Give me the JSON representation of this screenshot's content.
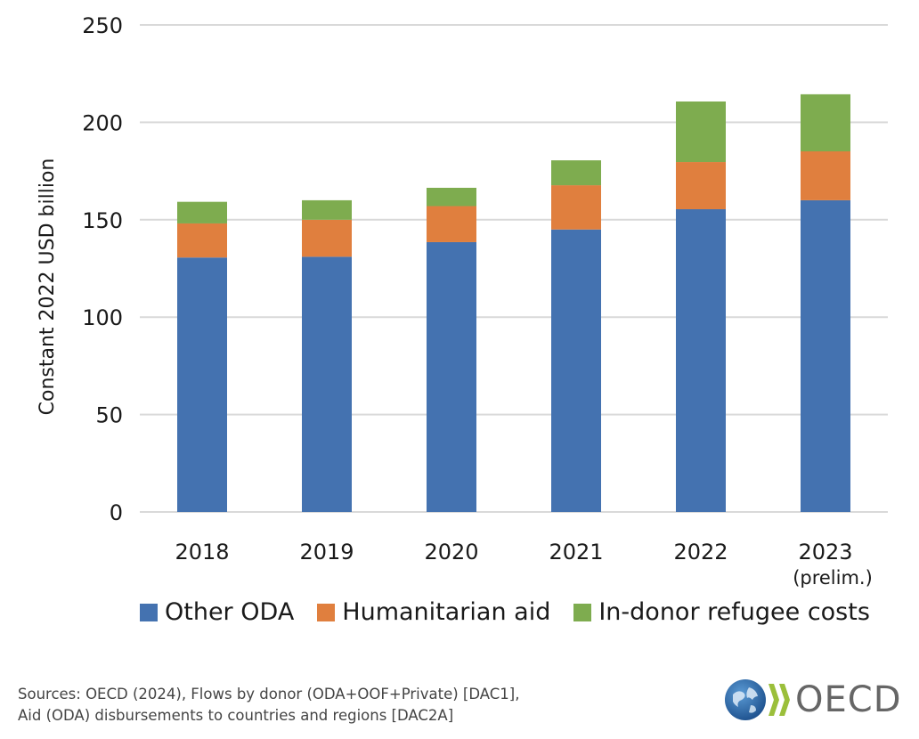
{
  "chart_data": {
    "type": "bar",
    "stacked": true,
    "title": "",
    "xlabel": "",
    "ylabel": "Constant 2022 USD billion",
    "ylim": [
      0,
      250
    ],
    "yticks": [
      0,
      50,
      100,
      150,
      200,
      250
    ],
    "grid": true,
    "legend_position": "bottom",
    "categories": [
      "2018",
      "2019",
      "2020",
      "2021",
      "2022",
      "2023"
    ],
    "category_sublabels": [
      "",
      "",
      "",
      "",
      "",
      "(prelim.)"
    ],
    "series": [
      {
        "name": "Other ODA",
        "color": "#4472b0",
        "values": [
          130.6,
          131.0,
          138.5,
          145.0,
          155.4,
          160.0
        ]
      },
      {
        "name": "Humanitarian aid",
        "color": "#e07f3e",
        "values": [
          17.5,
          19.0,
          18.5,
          22.7,
          24.2,
          25.1
        ]
      },
      {
        "name": "In-donor refugee costs",
        "color": "#7eac4f",
        "values": [
          11.1,
          10.0,
          9.4,
          12.8,
          31.1,
          29.3
        ]
      }
    ]
  },
  "sources": {
    "line1": "Sources: OECD (2024), Flows by donor (ODA+OOF+Private) [DAC1],",
    "line2": "Aid (ODA) disbursements to countries and regions [DAC2A]"
  },
  "logo": {
    "text": "OECD",
    "icon": "globe-icon"
  }
}
